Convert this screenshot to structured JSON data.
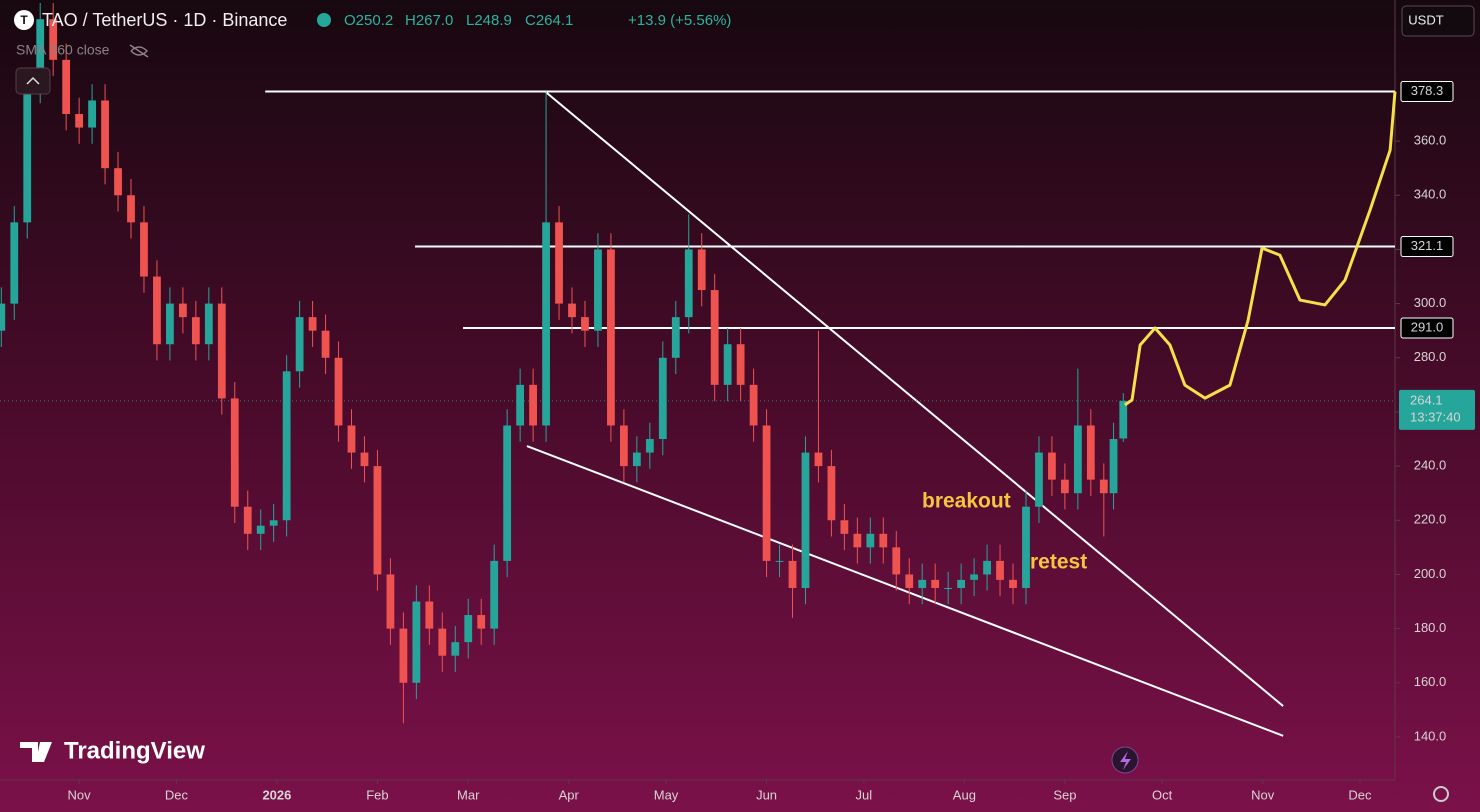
{
  "chart_data": {
    "type": "candlestick",
    "title": "TAO / TetherUS · 1D · Binance",
    "legend_values": [
      "O250.2",
      "H267.0",
      "L248.9",
      "C264.1",
      "+13.9 (+5.56%)"
    ],
    "indicator": "SMA 360 close",
    "currency": "USDT",
    "brand": "TradingView",
    "up_color": "#26a69a",
    "down_color": "#ef5350",
    "x": [
      -24,
      -20,
      -16,
      -12,
      -8,
      -4,
      0,
      4,
      8,
      12,
      16,
      20,
      24,
      28,
      32,
      36,
      40,
      44,
      48,
      52,
      56,
      60,
      64,
      68,
      72,
      76,
      80,
      84,
      88,
      92,
      96,
      100,
      104,
      108,
      112,
      116,
      120,
      124,
      128,
      132,
      136,
      140,
      144,
      148,
      152,
      156,
      160,
      164,
      168,
      172,
      176,
      180,
      184,
      188,
      192,
      196,
      200,
      204,
      208,
      212,
      216,
      220,
      224,
      228,
      232,
      236,
      240,
      244,
      248,
      252,
      256,
      260,
      264,
      268,
      272,
      276,
      280,
      284,
      288,
      292,
      296,
      300,
      304,
      308,
      312,
      316,
      319,
      322
    ],
    "open": [
      290,
      300,
      330,
      380,
      405,
      390,
      370,
      365,
      375,
      350,
      340,
      330,
      310,
      285,
      300,
      295,
      285,
      300,
      265,
      225,
      215,
      218,
      220,
      275,
      295,
      290,
      280,
      255,
      245,
      240,
      200,
      180,
      160,
      190,
      180,
      170,
      175,
      185,
      180,
      205,
      255,
      270,
      255,
      330,
      300,
      295,
      290,
      320,
      255,
      240,
      245,
      250,
      280,
      295,
      320,
      305,
      270,
      285,
      270,
      255,
      205,
      205,
      195,
      245,
      240,
      220,
      215,
      210,
      215,
      210,
      200,
      195,
      198,
      195,
      195,
      198,
      200,
      205,
      198,
      195,
      225,
      245,
      235,
      230,
      255,
      235,
      230,
      250.2
    ],
    "high": [
      306,
      336,
      386,
      411,
      411,
      396,
      376,
      381,
      381,
      356,
      346,
      336,
      316,
      306,
      306,
      301,
      306,
      306,
      271,
      231,
      224,
      226,
      281,
      301,
      301,
      296,
      286,
      261,
      251,
      246,
      206,
      186,
      196,
      196,
      186,
      181,
      191,
      191,
      211,
      261,
      276,
      276,
      378.3,
      336,
      306,
      301,
      326,
      326,
      261,
      251,
      256,
      286,
      301,
      333,
      326,
      311,
      291,
      291,
      276,
      261,
      211,
      211,
      251,
      290,
      246,
      226,
      221,
      221,
      221,
      216,
      206,
      204,
      204,
      201,
      204,
      206,
      211,
      211,
      204,
      231,
      251,
      251,
      241,
      276,
      261,
      241,
      256,
      267
    ],
    "low": [
      284,
      294,
      324,
      374,
      384,
      364,
      359,
      359,
      344,
      334,
      324,
      304,
      279,
      279,
      289,
      279,
      279,
      259,
      219,
      209,
      209,
      212,
      214,
      269,
      284,
      274,
      249,
      239,
      234,
      194,
      174,
      145,
      154,
      174,
      164,
      164,
      169,
      174,
      174,
      199,
      249,
      249,
      249,
      294,
      289,
      284,
      284,
      249,
      234,
      234,
      239,
      244,
      274,
      289,
      299,
      264,
      264,
      264,
      249,
      199,
      199,
      184,
      189,
      234,
      214,
      209,
      204,
      204,
      204,
      194,
      189,
      189,
      189,
      189,
      189,
      192,
      194,
      192,
      189,
      189,
      219,
      229,
      224,
      224,
      229,
      214,
      224,
      248.9
    ],
    "close": [
      300,
      330,
      380,
      405,
      390,
      370,
      365,
      375,
      350,
      340,
      330,
      310,
      285,
      300,
      295,
      285,
      300,
      265,
      225,
      215,
      218,
      220,
      275,
      295,
      290,
      280,
      255,
      245,
      240,
      200,
      180,
      160,
      190,
      180,
      170,
      175,
      185,
      180,
      205,
      255,
      270,
      255,
      330,
      300,
      295,
      290,
      320,
      255,
      240,
      245,
      250,
      280,
      295,
      320,
      305,
      270,
      285,
      270,
      255,
      205,
      205,
      195,
      245,
      240,
      220,
      215,
      210,
      215,
      210,
      200,
      195,
      198,
      195,
      195,
      198,
      200,
      205,
      198,
      195,
      225,
      245,
      235,
      230,
      255,
      235,
      230,
      250,
      264.1
    ],
    "xlim": [
      -24.4,
      405.8
    ],
    "ylim": [
      124.1,
      412.1
    ],
    "xticks": [
      {
        "value": 0,
        "label": "Nov"
      },
      {
        "value": 30,
        "label": "Dec"
      },
      {
        "value": 61,
        "label": "2026"
      },
      {
        "value": 92,
        "label": "Feb"
      },
      {
        "value": 120,
        "label": "Mar"
      },
      {
        "value": 151,
        "label": "Apr"
      },
      {
        "value": 181,
        "label": "May"
      },
      {
        "value": 212,
        "label": "Jun"
      },
      {
        "value": 242,
        "label": "Jul"
      },
      {
        "value": 273,
        "label": "Aug"
      },
      {
        "value": 304,
        "label": "Sep"
      },
      {
        "value": 334,
        "label": "Oct"
      },
      {
        "value": 365,
        "label": "Nov"
      },
      {
        "value": 395,
        "label": "Dec"
      }
    ],
    "yticks": [
      {
        "value": 140,
        "label": "140.0"
      },
      {
        "value": 160,
        "label": "160.0"
      },
      {
        "value": 180,
        "label": "180.0"
      },
      {
        "value": 200,
        "label": "200.0"
      },
      {
        "value": 220,
        "label": "220.0"
      },
      {
        "value": 240,
        "label": "240.0"
      },
      {
        "value": 260,
        "label": "260.0"
      },
      {
        "value": 280,
        "label": "280.0"
      },
      {
        "value": 300,
        "label": "300.0"
      },
      {
        "value": 320,
        "label": "320.0"
      },
      {
        "value": 340,
        "label": "340.0"
      },
      {
        "value": 360,
        "label": "360.0"
      }
    ],
    "levels": [
      {
        "value": 378.3,
        "label": "378.3",
        "x_start": 57.4
      },
      {
        "value": 321.1,
        "label": "321.1",
        "x_start": 103.6
      },
      {
        "value": 291,
        "label": "291.0",
        "x_start": 118.4
      }
    ],
    "last_price": 264.1,
    "countdown": "13:37:40",
    "trendlines": [
      {
        "x": [
          143.7,
          371.3
        ],
        "y": [
          378.3,
          151.4
        ]
      },
      {
        "x": [
          138.1,
          371.3
        ],
        "y": [
          247.4,
          140.4
        ]
      }
    ],
    "projection": {
      "color": "#f5e04a",
      "x": [
        322.5,
        324.7,
        327.2,
        331.8,
        336.4,
        341.0,
        347.2,
        354.9,
        360.5,
        364.8,
        370.3,
        376.5,
        384.2,
        390.4,
        398.1,
        404.3,
        405.8
      ],
      "y": [
        262.6,
        264.4,
        284.7,
        291.0,
        284.7,
        269.9,
        265.1,
        269.9,
        293.9,
        320.5,
        317.9,
        301.3,
        299.5,
        308.7,
        334.5,
        356.7,
        378.3
      ]
    },
    "annotations": [
      "breakout",
      "retest"
    ]
  }
}
